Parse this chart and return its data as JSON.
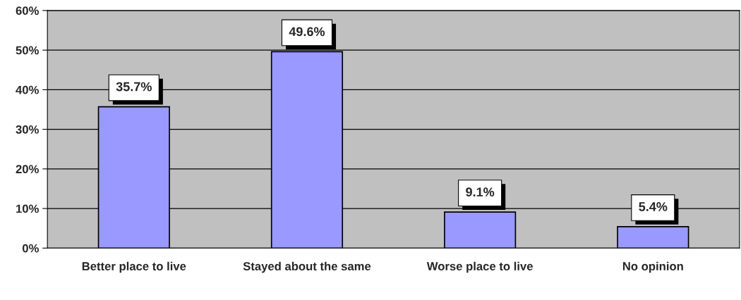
{
  "chart_data": {
    "type": "bar",
    "categories": [
      "Better place to live",
      "Stayed about the same",
      "Worse place to live",
      "No opinion"
    ],
    "values": [
      35.7,
      49.6,
      9.1,
      5.4
    ],
    "value_labels": [
      "35.7%",
      "49.6%",
      "9.1%",
      "5.4%"
    ],
    "color": "#9999ff",
    "ylim": [
      0,
      60
    ],
    "yticks": [
      {
        "value": 0,
        "label": "0%"
      },
      {
        "value": 10,
        "label": "10%"
      },
      {
        "value": 20,
        "label": "20%"
      },
      {
        "value": 30,
        "label": "30%"
      },
      {
        "value": 40,
        "label": "40%"
      },
      {
        "value": 50,
        "label": "50%"
      },
      {
        "value": 60,
        "label": "60%"
      }
    ],
    "grid": "y"
  }
}
